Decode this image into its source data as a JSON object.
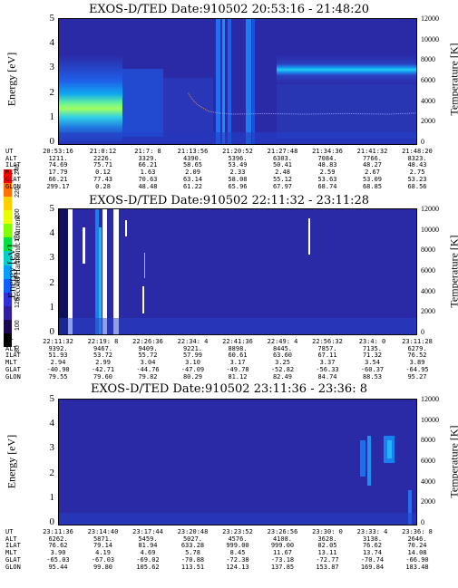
{
  "colorbar": {
    "label": "Second Harmonic Current",
    "ticks": [
      "240",
      "220",
      "200",
      "180",
      "160",
      "140",
      "120",
      "100",
      "80"
    ],
    "colors": [
      "#ff0000",
      "#ff7000",
      "#ffd000",
      "#e8ff00",
      "#80ff00",
      "#00e040",
      "#00d0c8",
      "#00a0ff",
      "#1060ff",
      "#3030d8",
      "#3020a0",
      "#1a0850",
      "#000000"
    ]
  },
  "panels": [
    {
      "title": "EXOS-D/TED   Date:910502   20:53:16 - 21:48:20",
      "ylabel": "Energy [eV]",
      "rlabel": "Temperature [K]",
      "yticks": [
        "5",
        "4",
        "3",
        "2",
        "1",
        "0"
      ],
      "rticks": [
        "12000",
        "10000",
        "8000",
        "6000",
        "4000",
        "2000",
        "0"
      ],
      "info_labels": [
        "UT",
        "ALT",
        "ILAT",
        "MLT",
        "GLAT",
        "GLON"
      ],
      "columns": [
        [
          "20:53:16",
          "1211.",
          "74.69",
          "17.79",
          "66.21",
          "299.17"
        ],
        [
          "21:0:12",
          "2226.",
          "75.71",
          "0.12",
          "77.43",
          "0.28"
        ],
        [
          "21:7: 8",
          "3329.",
          "66.21",
          "1.63",
          "70.63",
          "48.48"
        ],
        [
          "21:13:56",
          "4390.",
          "58.65",
          "2.09",
          "63.14",
          "61.22"
        ],
        [
          "21:20:52",
          "5396.",
          "53.49",
          "2.33",
          "58.08",
          "65.96"
        ],
        [
          "21:27:48",
          "6303.",
          "50.41",
          "2.48",
          "55.12",
          "67.97"
        ],
        [
          "21:34:36",
          "7084.",
          "48.83",
          "2.59",
          "53.63",
          "68.74"
        ],
        [
          "21:41:32",
          "7766.",
          "48.27",
          "2.67",
          "53.09",
          "68.85"
        ],
        [
          "21:48:20",
          "8323.",
          "48.43",
          "2.75",
          "53.23",
          "68.56"
        ]
      ]
    },
    {
      "title": "EXOS-D/TED   Date:910502   22:11:32 - 23:11:28",
      "ylabel": "Energy [eV]",
      "rlabel": "Temperature [K]",
      "yticks": [
        "5",
        "4",
        "3",
        "2",
        "1",
        "0"
      ],
      "rticks": [
        "12000",
        "10000",
        "8000",
        "6000",
        "4000",
        "2000",
        "0"
      ],
      "info_labels": [
        "UT",
        "ALT",
        "ILAT",
        "MLT",
        "GLAT",
        "GLON"
      ],
      "columns": [
        [
          "22:11:32",
          "9392.",
          "51.93",
          "2.94",
          "-40.90",
          "79.55"
        ],
        [
          "22:19: 8",
          "9467.",
          "53.72",
          "2.99",
          "-42.71",
          "79.60"
        ],
        [
          "22:26:36",
          "9409.",
          "55.72",
          "3.04",
          "-44.76",
          "79.82"
        ],
        [
          "22:34: 4",
          "9221.",
          "57.99",
          "3.10",
          "-47.09",
          "80.29"
        ],
        [
          "22:41:36",
          "8898.",
          "60.61",
          "3.17",
          "-49.78",
          "81.12"
        ],
        [
          "22:49: 4",
          "8445.",
          "63.60",
          "3.25",
          "-52.82",
          "82.49"
        ],
        [
          "22:56:32",
          "7857.",
          "67.11",
          "3.37",
          "-56.33",
          "84.74"
        ],
        [
          "23:4: 0",
          "7135.",
          "71.32",
          "3.54",
          "-60.37",
          "88.53"
        ],
        [
          "23:11:28",
          "6279.",
          "76.52",
          "3.89",
          "-64.95",
          "95.27"
        ]
      ]
    },
    {
      "title": "EXOS-D/TED   Date:910502   23:11:36 - 23:36: 8",
      "ylabel": "Energy [eV]",
      "rlabel": "Temperature [K]",
      "yticks": [
        "5",
        "4",
        "3",
        "2",
        "1",
        "0"
      ],
      "rticks": [
        "12000",
        "10000",
        "8000",
        "6000",
        "4000",
        "2000",
        "0"
      ],
      "info_labels": [
        "UT",
        "ALT",
        "ILAT",
        "MLT",
        "GLAT",
        "GLON"
      ],
      "columns": [
        [
          "23:11:36",
          "6262.",
          "76.62",
          "3.90",
          "-65.03",
          "95.44"
        ],
        [
          "23:14:40",
          "5871.",
          "79.14",
          "4.19",
          "-67.03",
          "99.80"
        ],
        [
          "23:17:44",
          "5459.",
          "81.94",
          "4.69",
          "-69.02",
          "105.62"
        ],
        [
          "23:20:48",
          "5027.",
          "633.28",
          "5.78",
          "-70.88",
          "113.51"
        ],
        [
          "23:23:52",
          "4576.",
          "999.00",
          "8.45",
          "-72.38",
          "124.13"
        ],
        [
          "23:26:56",
          "4108.",
          "999.00",
          "11.67",
          "-73.18",
          "137.85"
        ],
        [
          "23:30: 0",
          "3628.",
          "82.05",
          "13.11",
          "-72.77",
          "153.87"
        ],
        [
          "23:33: 4",
          "3138.",
          "76.62",
          "13.74",
          "-70.74",
          "169.84"
        ],
        [
          "23:36: 8",
          "2646.",
          "70.24",
          "14.08",
          "-66.90",
          "183.48"
        ]
      ]
    }
  ],
  "chart_data": [
    {
      "type": "heatmap",
      "title": "EXOS-D/TED   Date:910502   20:53:16 - 21:48:20",
      "ylabel": "Energy [eV]",
      "y2label": "Temperature [K]",
      "ylim": [
        0,
        5
      ],
      "y2lim": [
        0,
        12000
      ],
      "temperature_trace": [
        [
          12.6,
          5000
        ],
        [
          13.0,
          4400
        ],
        [
          13.5,
          3900
        ],
        [
          14.0,
          3600
        ],
        [
          14.5,
          3300
        ],
        [
          15.5,
          3100
        ],
        [
          17.0,
          3000
        ],
        [
          20,
          3050
        ],
        [
          24,
          3000
        ],
        [
          28,
          3050
        ],
        [
          32,
          3000
        ],
        [
          35,
          3100
        ]
      ]
    },
    {
      "type": "heatmap",
      "title": "EXOS-D/TED   Date:910502   22:11:32 - 23:11:28",
      "ylabel": "Energy [eV]",
      "y2label": "Temperature [K]",
      "ylim": [
        0,
        5
      ],
      "y2lim": [
        0,
        12000
      ]
    },
    {
      "type": "heatmap",
      "title": "EXOS-D/TED   Date:910502   23:11:36 - 23:36: 8",
      "ylabel": "Energy [eV]",
      "y2label": "Temperature [K]",
      "ylim": [
        0,
        5
      ],
      "y2lim": [
        0,
        12000
      ]
    }
  ]
}
